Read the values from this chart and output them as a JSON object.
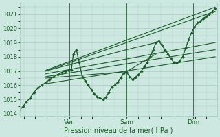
{
  "xlabel": "Pression niveau de la mer( hPa )",
  "bg_color": "#cce8e0",
  "grid_color": "#aaccC4",
  "line_color": "#1a5c28",
  "ylim": [
    1013.8,
    1021.8
  ],
  "yticks": [
    1014,
    1015,
    1016,
    1017,
    1018,
    1019,
    1020,
    1021
  ],
  "xtick_positions": [
    0.25,
    0.54,
    0.88
  ],
  "xtick_labels": [
    "Ven",
    "Sam",
    "Dim"
  ],
  "xvlines": [
    0.25,
    0.54,
    0.88
  ],
  "series": [
    {
      "x": [
        0.0,
        0.015,
        0.03,
        0.05,
        0.07,
        0.09,
        0.11,
        0.13,
        0.15,
        0.17,
        0.19,
        0.21,
        0.23,
        0.245,
        0.26,
        0.27,
        0.285,
        0.3,
        0.315,
        0.33,
        0.345,
        0.36,
        0.375,
        0.39,
        0.405,
        0.42,
        0.435,
        0.45,
        0.465,
        0.48,
        0.495,
        0.51,
        0.525,
        0.54,
        0.555,
        0.57,
        0.585,
        0.6,
        0.615,
        0.63,
        0.645,
        0.66,
        0.675,
        0.69,
        0.705,
        0.72,
        0.735,
        0.75,
        0.765,
        0.78,
        0.795,
        0.81,
        0.825,
        0.84,
        0.855,
        0.87,
        0.885,
        0.9,
        0.915,
        0.93,
        0.945,
        0.96,
        0.975,
        0.99
      ],
      "y": [
        1014.3,
        1014.5,
        1014.8,
        1015.1,
        1015.5,
        1015.8,
        1016.0,
        1016.2,
        1016.4,
        1016.6,
        1016.75,
        1016.9,
        1017.0,
        1017.05,
        1017.1,
        1018.2,
        1018.5,
        1017.6,
        1016.6,
        1016.3,
        1016.0,
        1015.7,
        1015.4,
        1015.2,
        1015.1,
        1015.0,
        1015.15,
        1015.5,
        1015.85,
        1016.0,
        1016.2,
        1016.5,
        1016.85,
        1016.95,
        1016.6,
        1016.4,
        1016.55,
        1016.75,
        1017.0,
        1017.3,
        1017.6,
        1018.0,
        1018.5,
        1019.0,
        1019.1,
        1018.8,
        1018.5,
        1018.2,
        1017.9,
        1017.6,
        1017.55,
        1017.7,
        1018.0,
        1018.6,
        1019.2,
        1019.7,
        1020.1,
        1020.4,
        1020.5,
        1020.7,
        1020.85,
        1021.0,
        1021.2,
        1021.4
      ],
      "marker": true,
      "linewidth": 1.0
    },
    {
      "x": [
        0.13,
        0.99
      ],
      "y": [
        1017.05,
        1021.5
      ],
      "marker": false,
      "linewidth": 0.8
    },
    {
      "x": [
        0.13,
        0.99
      ],
      "y": [
        1017.0,
        1021.2
      ],
      "marker": false,
      "linewidth": 0.8
    },
    {
      "x": [
        0.13,
        0.99
      ],
      "y": [
        1016.8,
        1019.0
      ],
      "marker": false,
      "linewidth": 0.8
    },
    {
      "x": [
        0.13,
        0.99
      ],
      "y": [
        1016.6,
        1018.5
      ],
      "marker": false,
      "linewidth": 0.8
    },
    {
      "x": [
        0.13,
        0.99
      ],
      "y": [
        1016.1,
        1018.0
      ],
      "marker": false,
      "linewidth": 0.8
    },
    {
      "x": [
        0.13,
        0.54
      ],
      "y": [
        1017.0,
        1018.5
      ],
      "marker": false,
      "linewidth": 0.8
    },
    {
      "x": [
        0.13,
        0.54
      ],
      "y": [
        1016.5,
        1016.95
      ],
      "marker": false,
      "linewidth": 0.8
    },
    {
      "x": [
        0.54,
        0.69
      ],
      "y": [
        1018.5,
        1019.0
      ],
      "marker": false,
      "linewidth": 0.8
    },
    {
      "x": [
        0.54,
        0.69
      ],
      "y": [
        1016.95,
        1018.2
      ],
      "marker": false,
      "linewidth": 0.8
    }
  ]
}
